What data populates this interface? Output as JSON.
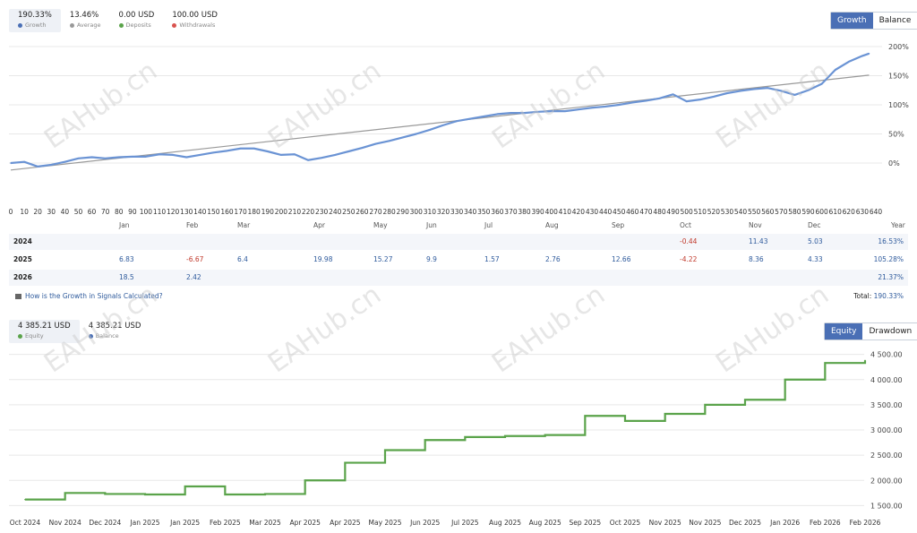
{
  "growth_stats": [
    {
      "value": "190.33%",
      "label": "Growth",
      "color": "#4a6fb5",
      "active": true
    },
    {
      "value": "13.46%",
      "label": "Average",
      "color": "#999999",
      "active": false
    },
    {
      "value": "0.00 USD",
      "label": "Deposits",
      "color": "#5aa34a",
      "active": false
    },
    {
      "value": "100.00 USD",
      "label": "Withdrawals",
      "color": "#d9534f",
      "active": false
    }
  ],
  "growth_toggle": {
    "growth": "Growth",
    "balance": "Balance"
  },
  "growth_chart": {
    "y_ticks": [
      "200%",
      "150%",
      "100%",
      "50%",
      "0%"
    ],
    "x_ticks": [
      "0",
      "10",
      "20",
      "30",
      "40",
      "50",
      "60",
      "70",
      "80",
      "90",
      "100",
      "110",
      "120",
      "130",
      "140",
      "150",
      "160",
      "170",
      "180",
      "190",
      "200",
      "210",
      "220",
      "230",
      "240",
      "250",
      "260",
      "270",
      "280",
      "290",
      "300",
      "310",
      "320",
      "330",
      "340",
      "350",
      "360",
      "370",
      "380",
      "390",
      "400",
      "410",
      "420",
      "430",
      "440",
      "450",
      "460",
      "470",
      "480",
      "490",
      "500",
      "510",
      "520",
      "530",
      "540",
      "550",
      "560",
      "570",
      "580",
      "590",
      "600",
      "610",
      "620",
      "630",
      "640"
    ]
  },
  "year_table": {
    "months": [
      "Jan",
      "Feb",
      "Mar",
      "Apr",
      "May",
      "Jun",
      "Jul",
      "Aug",
      "Sep",
      "Oct",
      "Nov",
      "Dec"
    ],
    "year_col": "Year",
    "rows": [
      {
        "year": "2024",
        "values": [
          "",
          "",
          "",
          "",
          "",
          "",
          "",
          "",
          "",
          "-0.44",
          "11.43",
          "5.03"
        ],
        "total": "16.53%"
      },
      {
        "year": "2025",
        "values": [
          "6.83",
          "-6.67",
          "6.4",
          "19.98",
          "15.27",
          "9.9",
          "1.57",
          "2.76",
          "12.66",
          "-4.22",
          "8.36",
          "4.33"
        ],
        "total": "105.28%"
      },
      {
        "year": "2026",
        "values": [
          "18.5",
          "2.42",
          "",
          "",
          "",
          "",
          "",
          "",
          "",
          "",
          "",
          ""
        ],
        "total": "21.37%"
      }
    ],
    "help_link": "How is the Growth in Signals Calculated?",
    "total_label": "Total:",
    "total_value": "190.33%"
  },
  "equity_stats": [
    {
      "value": "4 385.21 USD",
      "label": "Equity",
      "color": "#5aa34a",
      "active": true
    },
    {
      "value": "4 385.21 USD",
      "label": "Balance",
      "color": "#4a6fb5",
      "active": false
    }
  ],
  "equity_toggle": {
    "equity": "Equity",
    "drawdown": "Drawdown"
  },
  "equity_chart": {
    "y_ticks": [
      "4 500.00",
      "4 000.00",
      "3 500.00",
      "3 000.00",
      "2 500.00",
      "2 000.00",
      "1 500.00"
    ],
    "x_ticks": [
      "Oct 2024",
      "Nov 2024",
      "Dec 2024",
      "Jan 2025",
      "Jan 2025",
      "Feb 2025",
      "Mar 2025",
      "Apr 2025",
      "Apr 2025",
      "May 2025",
      "Jun 2025",
      "Jul 2025",
      "Aug 2025",
      "Aug 2025",
      "Sep 2025",
      "Oct 2025",
      "Nov 2025",
      "Nov 2025",
      "Dec 2025",
      "Jan 2026",
      "Feb 2026",
      "Feb 2026"
    ]
  },
  "watermark": "EAHub.cn",
  "chart_data": [
    {
      "type": "line",
      "title": "",
      "xlabel": "",
      "ylabel": "",
      "xlim": [
        0,
        640
      ],
      "ylim": [
        -20,
        200
      ],
      "series": [
        {
          "name": "Growth",
          "x": [
            0,
            10,
            20,
            30,
            40,
            50,
            60,
            70,
            80,
            90,
            100,
            110,
            120,
            130,
            140,
            150,
            160,
            170,
            180,
            190,
            200,
            210,
            220,
            230,
            240,
            250,
            260,
            270,
            280,
            290,
            300,
            310,
            320,
            330,
            340,
            350,
            360,
            370,
            380,
            390,
            400,
            410,
            420,
            430,
            440,
            450,
            460,
            470,
            480,
            490,
            500,
            510,
            520,
            530,
            540,
            550,
            560,
            570,
            580,
            590,
            600,
            610,
            620,
            630,
            635
          ],
          "y": [
            0,
            2,
            -6,
            -3,
            2,
            8,
            10,
            8,
            10,
            11,
            11,
            15,
            14,
            10,
            14,
            18,
            21,
            25,
            25,
            20,
            14,
            15,
            5,
            9,
            14,
            20,
            26,
            33,
            38,
            44,
            50,
            57,
            65,
            72,
            76,
            80,
            84,
            86,
            86,
            88,
            89,
            89,
            92,
            95,
            97,
            100,
            104,
            107,
            111,
            118,
            106,
            109,
            114,
            120,
            124,
            127,
            129,
            124,
            117,
            125,
            136,
            160,
            174,
            184,
            188
          ]
        }
      ]
    },
    {
      "type": "line",
      "title": "",
      "xlabel": "",
      "ylabel": "",
      "ylim": [
        1400,
        4600
      ],
      "categories": [
        "Oct 2024",
        "Nov 2024",
        "Dec 2024",
        "Jan 2025",
        "Jan 2025",
        "Feb 2025",
        "Mar 2025",
        "Apr 2025",
        "Apr 2025",
        "May 2025",
        "Jun 2025",
        "Jul 2025",
        "Aug 2025",
        "Aug 2025",
        "Sep 2025",
        "Oct 2025",
        "Nov 2025",
        "Nov 2025",
        "Dec 2025",
        "Jan 2026",
        "Feb 2026",
        "Feb 2026"
      ],
      "series": [
        {
          "name": "Equity",
          "values": [
            1620,
            1750,
            1730,
            1720,
            1880,
            1720,
            1730,
            2000,
            2350,
            2600,
            2800,
            2860,
            2880,
            2900,
            3280,
            3180,
            3320,
            3500,
            3600,
            4000,
            4330,
            4380
          ]
        }
      ]
    }
  ]
}
